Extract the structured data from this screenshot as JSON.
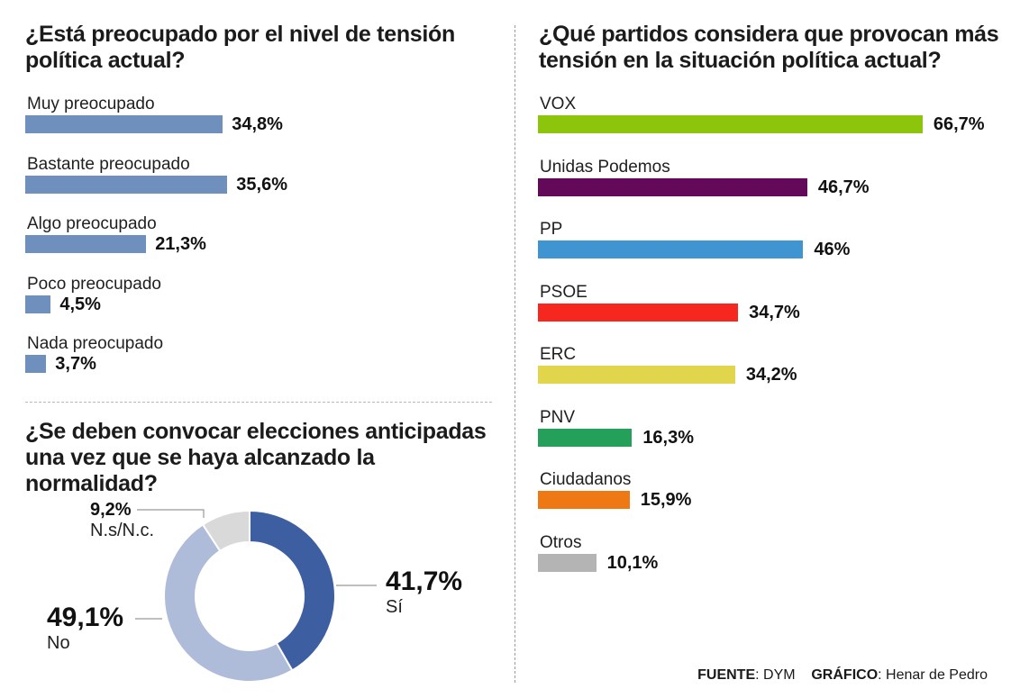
{
  "chart_data": [
    {
      "type": "bar",
      "orientation": "horizontal",
      "title": "¿Está preocupado por el nivel de tensión política actual?",
      "categories": [
        "Muy preocupado",
        "Bastante preocupado",
        "Algo preocupado",
        "Poco preocupado",
        "Nada preocupado"
      ],
      "values": [
        34.8,
        35.6,
        21.3,
        4.5,
        3.7
      ],
      "value_labels": [
        "34,8%",
        "35,6%",
        "21,3%",
        "4,5%",
        "3,7%"
      ],
      "colors": [
        "#6f8fbd",
        "#6f8fbd",
        "#6f8fbd",
        "#6f8fbd",
        "#6f8fbd"
      ],
      "unit": "%"
    },
    {
      "type": "pie",
      "variant": "donut",
      "title": "¿Se deben convocar elecciones anticipadas una vez que se haya alcanzado la normalidad?",
      "categories": [
        "Sí",
        "No",
        "N.s/N.c."
      ],
      "values": [
        41.7,
        49.1,
        9.2
      ],
      "value_labels": [
        "41,7%",
        "49,1%",
        "9,2%"
      ],
      "colors": [
        "#3d5ea1",
        "#aebcda",
        "#d9d9d9"
      ],
      "unit": "%"
    },
    {
      "type": "bar",
      "orientation": "horizontal",
      "title": "¿Qué partidos considera que provocan más tensión en la situación política actual?",
      "categories": [
        "VOX",
        "Unidas Podemos",
        "PP",
        "PSOE",
        "ERC",
        "PNV",
        "Ciudadanos",
        "Otros"
      ],
      "values": [
        66.7,
        46.7,
        46,
        34.7,
        34.2,
        16.3,
        15.9,
        10.1
      ],
      "value_labels": [
        "66,7%",
        "46,7%",
        "46%",
        "34,7%",
        "34,2%",
        "16,3%",
        "15,9%",
        "10,1%"
      ],
      "colors": [
        "#8dc40c",
        "#620a59",
        "#3f94d2",
        "#f5271e",
        "#e1d64b",
        "#24a05a",
        "#ee7813",
        "#b4b4b4"
      ],
      "unit": "%"
    }
  ],
  "footer": {
    "source_label": "FUENTE",
    "source_value": ": DYM",
    "graphic_label": "GRÁFICO",
    "graphic_value": ": Henar de Pedro"
  }
}
